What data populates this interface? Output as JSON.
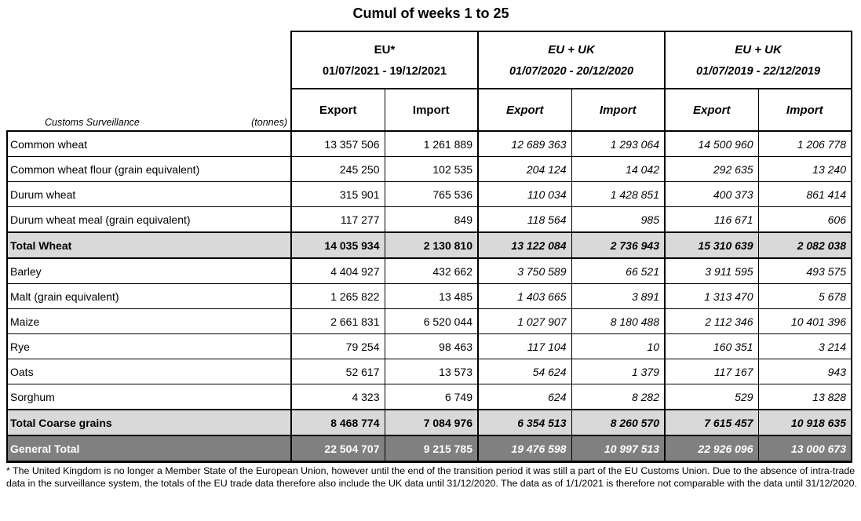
{
  "title": "Cumul of weeks 1 to 25",
  "table": {
    "corner": {
      "label": "Customs Surveillance",
      "unit": "(tonnes)"
    },
    "groups": [
      {
        "name": "EU*",
        "period": "01/07/2021 - 19/12/2021",
        "italic": false
      },
      {
        "name": "EU + UK",
        "period": "01/07/2020 - 20/12/2020",
        "italic": true
      },
      {
        "name": "EU + UK",
        "period": "01/07/2019 - 22/12/2019",
        "italic": true
      }
    ],
    "subheaders": [
      "Export",
      "Import",
      "Export",
      "Import",
      "Export",
      "Import"
    ],
    "rows": [
      {
        "label": "Common wheat",
        "type": "normal",
        "values": [
          "13 357 506",
          "1 261 889",
          "12 689 363",
          "1 293 064",
          "14 500 960",
          "1 206 778"
        ]
      },
      {
        "label": "Common wheat flour (grain equivalent)",
        "type": "normal",
        "values": [
          "245 250",
          "102 535",
          "204 124",
          "14 042",
          "292 635",
          "13 240"
        ]
      },
      {
        "label": "Durum wheat",
        "type": "normal",
        "values": [
          "315 901",
          "765 536",
          "110 034",
          "1 428 851",
          "400 373",
          "861 414"
        ]
      },
      {
        "label": "Durum wheat meal (grain equivalent)",
        "type": "normal",
        "values": [
          "117 277",
          "849",
          "118 564",
          "985",
          "116 671",
          "606"
        ]
      },
      {
        "label": "Total Wheat",
        "type": "subtotal",
        "values": [
          "14 035 934",
          "2 130 810",
          "13 122 084",
          "2 736 943",
          "15 310 639",
          "2 082 038"
        ]
      },
      {
        "label": "Barley",
        "type": "normal",
        "values": [
          "4 404 927",
          "432 662",
          "3 750 589",
          "66 521",
          "3 911 595",
          "493 575"
        ]
      },
      {
        "label": "Malt (grain equivalent)",
        "type": "normal",
        "values": [
          "1 265 822",
          "13 485",
          "1 403 665",
          "3 891",
          "1 313 470",
          "5 678"
        ]
      },
      {
        "label": "Maize",
        "type": "normal",
        "values": [
          "2 661 831",
          "6 520 044",
          "1 027 907",
          "8 180 488",
          "2 112 346",
          "10 401 396"
        ]
      },
      {
        "label": "Rye",
        "type": "normal",
        "values": [
          "79 254",
          "98 463",
          "117 104",
          "10",
          "160 351",
          "3 214"
        ]
      },
      {
        "label": "Oats",
        "type": "normal",
        "values": [
          "52 617",
          "13 573",
          "54 624",
          "1 379",
          "117 167",
          "943"
        ]
      },
      {
        "label": "Sorghum",
        "type": "normal",
        "values": [
          "4 323",
          "6 749",
          "624",
          "8 282",
          "529",
          "13 828"
        ]
      },
      {
        "label": "Total Coarse grains",
        "type": "subtotal",
        "values": [
          "8 468 774",
          "7 084 976",
          "6 354 513",
          "8 260 570",
          "7 615 457",
          "10 918 635"
        ]
      },
      {
        "label": "General Total",
        "type": "grandtotal",
        "values": [
          "22 504 707",
          "9 215 785",
          "19 476 598",
          "10 997 513",
          "22 926 096",
          "13 000 673"
        ]
      }
    ]
  },
  "footnote": "* The United Kingdom is no longer a Member State of the European Union, however until the end of the transition period it was still a part of the EU Customs Union. Due to the absence of intra-trade data in the surveillance system, the totals of the EU trade data therefore also include the UK data until 31/12/2020. The data as of 1/1/2021 is therefore not comparable with the data until 31/12/2020.",
  "colors": {
    "subtotal_bg": "#d9d9d9",
    "grandtotal_bg": "#808080",
    "grandtotal_text": "#ffffff",
    "border": "#000000"
  },
  "chart_data": {
    "type": "table",
    "title": "Cumul of weeks 1 to 25",
    "unit": "tonnes",
    "column_groups": [
      {
        "name": "EU*",
        "period": "01/07/2021 - 19/12/2021",
        "columns": [
          "Export",
          "Import"
        ]
      },
      {
        "name": "EU + UK",
        "period": "01/07/2020 - 20/12/2020",
        "columns": [
          "Export",
          "Import"
        ]
      },
      {
        "name": "EU + UK",
        "period": "01/07/2019 - 22/12/2019",
        "columns": [
          "Export",
          "Import"
        ]
      }
    ],
    "rows": [
      {
        "label": "Common wheat",
        "values": [
          13357506,
          1261889,
          12689363,
          1293064,
          14500960,
          1206778
        ]
      },
      {
        "label": "Common wheat flour (grain equivalent)",
        "values": [
          245250,
          102535,
          204124,
          14042,
          292635,
          13240
        ]
      },
      {
        "label": "Durum wheat",
        "values": [
          315901,
          765536,
          110034,
          1428851,
          400373,
          861414
        ]
      },
      {
        "label": "Durum wheat meal (grain equivalent)",
        "values": [
          117277,
          849,
          118564,
          985,
          116671,
          606
        ]
      },
      {
        "label": "Total Wheat",
        "values": [
          14035934,
          2130810,
          13122084,
          2736943,
          15310639,
          2082038
        ]
      },
      {
        "label": "Barley",
        "values": [
          4404927,
          432662,
          3750589,
          66521,
          3911595,
          493575
        ]
      },
      {
        "label": "Malt (grain equivalent)",
        "values": [
          1265822,
          13485,
          1403665,
          3891,
          1313470,
          5678
        ]
      },
      {
        "label": "Maize",
        "values": [
          2661831,
          6520044,
          1027907,
          8180488,
          2112346,
          10401396
        ]
      },
      {
        "label": "Rye",
        "values": [
          79254,
          98463,
          117104,
          10,
          160351,
          3214
        ]
      },
      {
        "label": "Oats",
        "values": [
          52617,
          13573,
          54624,
          1379,
          117167,
          943
        ]
      },
      {
        "label": "Sorghum",
        "values": [
          4323,
          6749,
          624,
          8282,
          529,
          13828
        ]
      },
      {
        "label": "Total Coarse grains",
        "values": [
          8468774,
          7084976,
          6354513,
          8260570,
          7615457,
          10918635
        ]
      },
      {
        "label": "General Total",
        "values": [
          22504707,
          9215785,
          19476598,
          10997513,
          22926096,
          13000673
        ]
      }
    ]
  }
}
